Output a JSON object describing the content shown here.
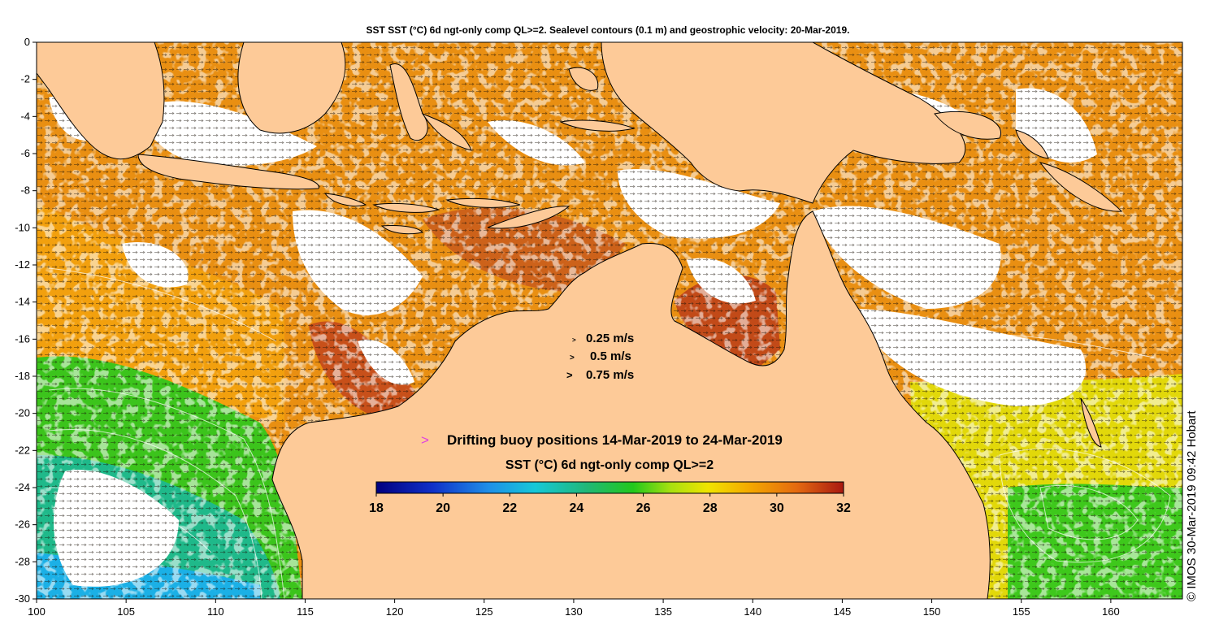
{
  "title": "SST SST (°C) 6d ngt-only comp QL>=2. Sealevel contours (0.1 m) and geostrophic velocity: 20-Mar-2019.",
  "credit": "© IMOS 30-Mar-2019 09:42 Hobart",
  "map": {
    "lon_range": [
      100,
      164
    ],
    "lat_range": [
      -30,
      0
    ],
    "x_ticks": [
      "100",
      "105",
      "110",
      "115",
      "120",
      "125",
      "130",
      "135",
      "140",
      "145",
      "150",
      "155",
      "160"
    ],
    "y_ticks": [
      "0",
      "-2",
      "-4",
      "-6",
      "-8",
      "-10",
      "-12",
      "-14",
      "-16",
      "-18",
      "-20",
      "-22",
      "-24",
      "-26",
      "-28",
      "-30"
    ]
  },
  "velocity_legend": [
    {
      "label": "0.25 m/s",
      "marker": ">"
    },
    {
      "label": "0.5 m/s",
      "marker": ">"
    },
    {
      "label": "0.75 m/s",
      "marker": ">"
    }
  ],
  "buoy_legend": {
    "marker": ">",
    "label": "Drifting buoy positions 14-Mar-2019 to 24-Mar-2019",
    "color": "#e040e0"
  },
  "colorbar": {
    "title": "SST (°C) 6d ngt-only comp QL>=2",
    "ticks": [
      "18",
      "20",
      "22",
      "24",
      "26",
      "28",
      "30",
      "32"
    ],
    "range": [
      18,
      32
    ]
  },
  "colors": {
    "land": "#fdca98",
    "no_data": "#ffffff",
    "ocean_warm": "#e98f12",
    "ocean_hot": "#c8501a",
    "buoy": "#e040e0"
  }
}
